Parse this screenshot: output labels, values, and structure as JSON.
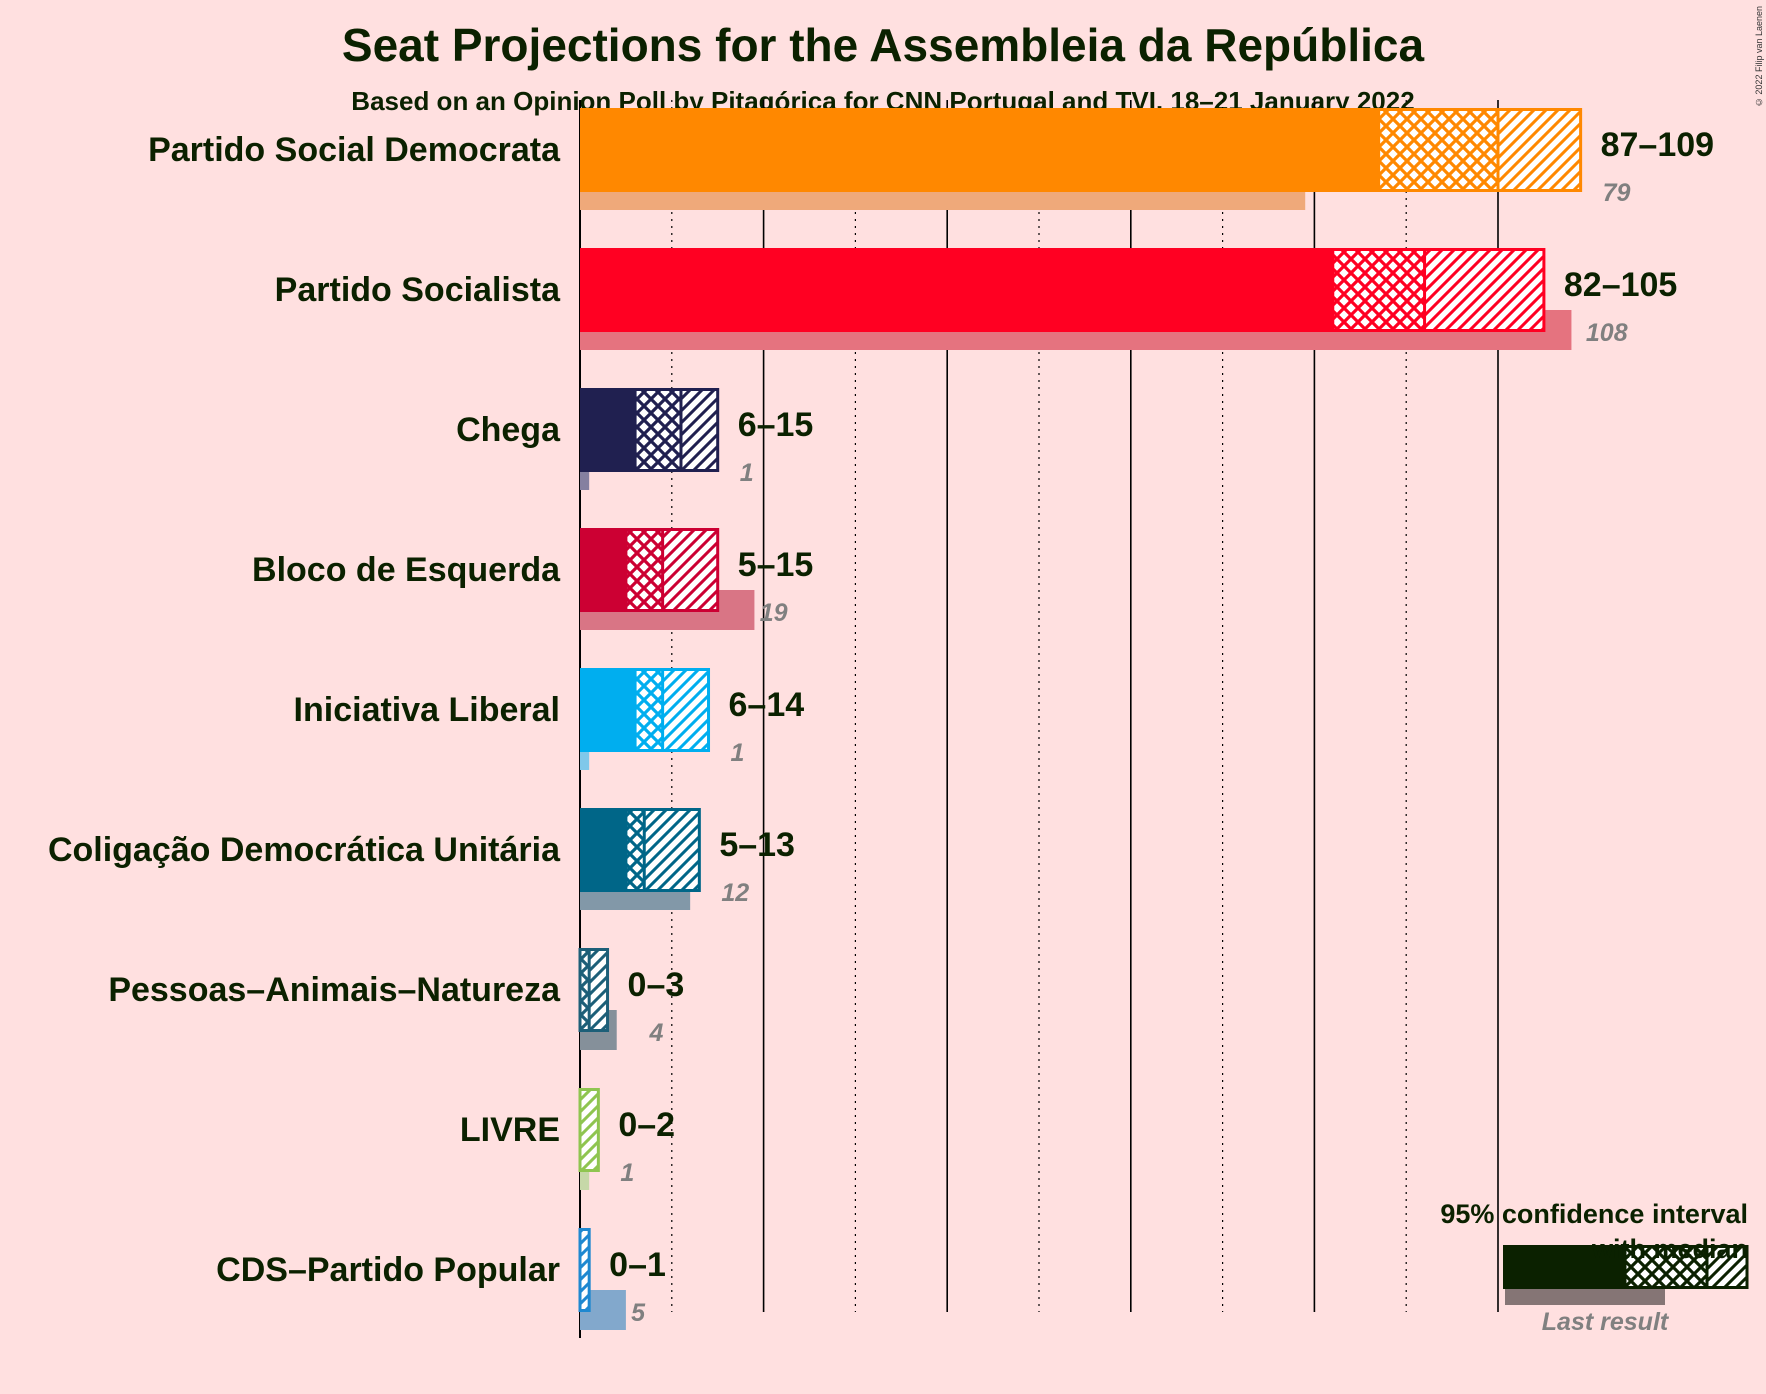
{
  "title": "Seat Projections for the Assembleia da República",
  "subtitle": "Based on an Opinion Poll by Pitagórica for CNN Portugal and TVI, 18–21 January 2022",
  "copyright": "© 2022 Filip van Laenen",
  "legend": {
    "title_line1": "95% confidence interval",
    "title_line2": "with median",
    "last_result": "Last result",
    "color": "#0B2100"
  },
  "chart_data": {
    "type": "bar",
    "orientation": "horizontal",
    "title": "Seat Projections for the Assembleia da República",
    "xlim": [
      0,
      110
    ],
    "grid": true,
    "gridlines": [
      10,
      20,
      30,
      40,
      50,
      60,
      70,
      80,
      90,
      100
    ],
    "legend_position": "bottom-right",
    "parties": [
      {
        "name": "Partido Social Democrata",
        "low": 87,
        "median": 100,
        "high": 109,
        "range": "87–109",
        "last": 79,
        "last_label": "79",
        "color": "#FF8800",
        "last_color": "#EFA97A"
      },
      {
        "name": "Partido Socialista",
        "low": 82,
        "median": 92,
        "high": 105,
        "range": "82–105",
        "last": 108,
        "last_label": "108",
        "color": "#FF0022",
        "last_color": "#E5737F"
      },
      {
        "name": "Chega",
        "low": 6,
        "median": 11,
        "high": 15,
        "range": "6–15",
        "last": 1,
        "last_label": "1",
        "color": "#202050",
        "last_color": "#8580A0"
      },
      {
        "name": "Bloco de Esquerda",
        "low": 5,
        "median": 9,
        "high": 15,
        "range": "5–15",
        "last": 19,
        "last_label": "19",
        "color": "#CC0033",
        "last_color": "#D97585"
      },
      {
        "name": "Iniciativa Liberal",
        "low": 6,
        "median": 9,
        "high": 14,
        "range": "6–14",
        "last": 1,
        "last_label": "1",
        "color": "#00AEEF",
        "last_color": "#80C8EA"
      },
      {
        "name": "Coligação Democrática Unitária",
        "low": 5,
        "median": 7,
        "high": 13,
        "range": "5–13",
        "last": 12,
        "last_label": "12",
        "color": "#006688",
        "last_color": "#8298A8"
      },
      {
        "name": "Pessoas–Animais–Natureza",
        "low": 0,
        "median": 1,
        "high": 3,
        "range": "0–3",
        "last": 4,
        "last_label": "4",
        "color": "#1D5F78",
        "last_color": "#85909A"
      },
      {
        "name": "LIVRE",
        "low": 0,
        "median": 0,
        "high": 2,
        "range": "0–2",
        "last": 1,
        "last_label": "1",
        "color": "#8FC550",
        "last_color": "#C6D8A8"
      },
      {
        "name": "CDS–Partido Popular",
        "low": 0,
        "median": 0,
        "high": 1,
        "range": "0–1",
        "last": 5,
        "last_label": "5",
        "color": "#1E88D0",
        "last_color": "#82A8CC"
      }
    ]
  }
}
